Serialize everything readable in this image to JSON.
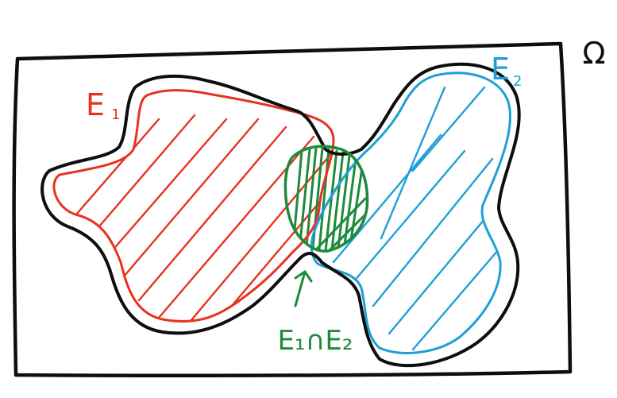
{
  "labels": {
    "omega": "Ω",
    "e1_letter": "E",
    "e1_sub": "1",
    "e2_letter": "E",
    "e2_sub": "2",
    "intersection": "E₁∩E₂"
  },
  "colors": {
    "black": "#0e0e0e",
    "red": "#e8321e",
    "blue": "#1e9fd8",
    "green": "#1e8a3c"
  }
}
